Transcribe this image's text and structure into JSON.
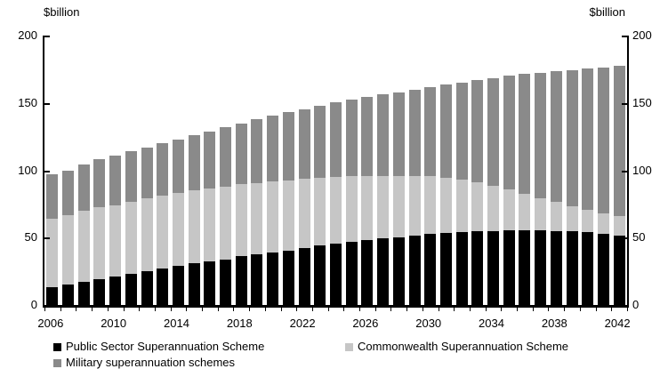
{
  "chart": {
    "unit_left": "$billion",
    "unit_right": "$billion"
  },
  "axes": {
    "y_ticks": [
      50,
      100,
      150,
      200
    ],
    "y_left_labels": [
      "200",
      "150",
      "100",
      "50",
      "0"
    ],
    "y_right_labels": [
      "200",
      "150",
      "100",
      "50",
      "0"
    ],
    "x_labels": [
      "2006",
      "2010",
      "2014",
      "2018",
      "2022",
      "2026",
      "2030",
      "2034",
      "2038",
      "2042"
    ]
  },
  "chart_data": {
    "type": "bar",
    "stacked": true,
    "title": "",
    "xlabel": "",
    "ylabel": "$billion",
    "ylim": [
      0,
      200
    ],
    "grid": false,
    "legend_position": "bottom",
    "categories": [
      2006,
      2007,
      2008,
      2009,
      2010,
      2011,
      2012,
      2013,
      2014,
      2015,
      2016,
      2017,
      2018,
      2019,
      2020,
      2021,
      2022,
      2023,
      2024,
      2025,
      2026,
      2027,
      2028,
      2029,
      2030,
      2031,
      2032,
      2033,
      2034,
      2035,
      2036,
      2037,
      2038,
      2039,
      2040,
      2041,
      2042
    ],
    "series": [
      {
        "name": "Public Sector Superannuation Scheme",
        "color": "#000000",
        "values": [
          13.5,
          15.5,
          17,
          19,
          21,
          23,
          25,
          27,
          29,
          31,
          32.5,
          34,
          36,
          37.5,
          39,
          40.5,
          42,
          44,
          45.5,
          47,
          48.5,
          49.5,
          50.5,
          51.5,
          52.5,
          53.5,
          54,
          54.5,
          55,
          55.5,
          55.5,
          55.5,
          55,
          54.5,
          54,
          53,
          51.5
        ]
      },
      {
        "name": "Commonwealth Superannuation Scheme",
        "color": "#c6c6c6",
        "values": [
          50.5,
          51.5,
          53,
          53.5,
          53,
          53.5,
          54,
          54,
          54,
          54,
          54,
          54,
          53.5,
          53,
          52.5,
          52,
          51.5,
          50.5,
          49.5,
          48.5,
          47.5,
          46.5,
          45.5,
          44.5,
          43,
          41,
          39,
          36.5,
          33.5,
          30,
          27,
          24,
          21.5,
          19,
          16.5,
          15,
          14.5
        ]
      },
      {
        "name": "Military superannuation schemes",
        "color": "#8a8a8a",
        "values": [
          33,
          33,
          34,
          35.5,
          37,
          37.5,
          38,
          39,
          39.5,
          41,
          42.5,
          44,
          45.5,
          47.5,
          49,
          50.5,
          52,
          53.5,
          55.5,
          57,
          58.5,
          60.5,
          62,
          64,
          66,
          69,
          72,
          76,
          80,
          84.5,
          89,
          93,
          97,
          101,
          105,
          108.5,
          111.5
        ]
      }
    ]
  }
}
